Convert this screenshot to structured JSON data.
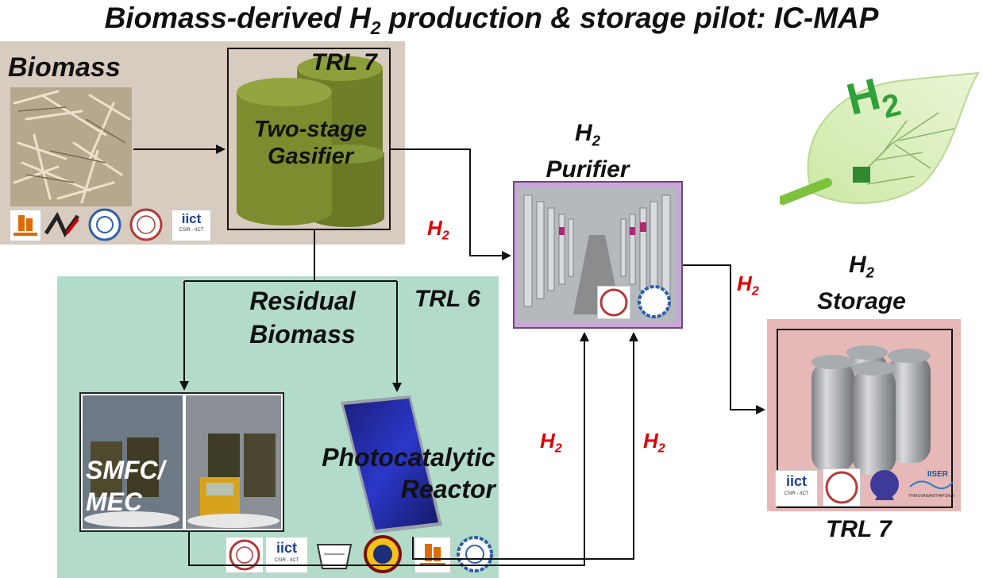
{
  "title": {
    "pre": "Biomass-derived H",
    "sub": "2",
    "post": " production & storage pilot: IC-MAP"
  },
  "biomass": {
    "label": "Biomass"
  },
  "gasifier": {
    "trl": "TRL 7",
    "line1": "Two-stage",
    "line2": "Gasifier"
  },
  "residual": {
    "line1": "Residual",
    "line2": "Biomass",
    "trl": "TRL 6"
  },
  "smfc": {
    "line1": "SMFC/",
    "line2": "MEC"
  },
  "photocatalytic": {
    "line1": "Photocatalytic",
    "line2": "Reactor"
  },
  "purifier": {
    "h": "H",
    "sub": "2",
    "label": "Purifier"
  },
  "storage": {
    "h": "H",
    "sub": "2",
    "label": "Storage",
    "trl": "TRL 7"
  },
  "h2_flows": [
    {
      "h": "H",
      "sub": "2"
    },
    {
      "h": "H",
      "sub": "2"
    },
    {
      "h": "H",
      "sub": "2"
    },
    {
      "h": "H",
      "sub": "2"
    }
  ],
  "leaf_logo": {
    "text": "H",
    "sub": "2"
  },
  "logos": {
    "iict": "iict",
    "iict_caption": "CSIR - IICT",
    "iiser": "IISER",
    "iiser_caption": "THIRUVANANTHAPURAM"
  },
  "colors": {
    "gasifier_panel": "#d8cbbf",
    "trl6_panel": "#b2dcc9",
    "storage_panel": "#e7b8b8",
    "purifier_frame": "#c9a6d8",
    "gasifier_cyl": "#7c8c2e",
    "h2_red": "#e00000"
  }
}
